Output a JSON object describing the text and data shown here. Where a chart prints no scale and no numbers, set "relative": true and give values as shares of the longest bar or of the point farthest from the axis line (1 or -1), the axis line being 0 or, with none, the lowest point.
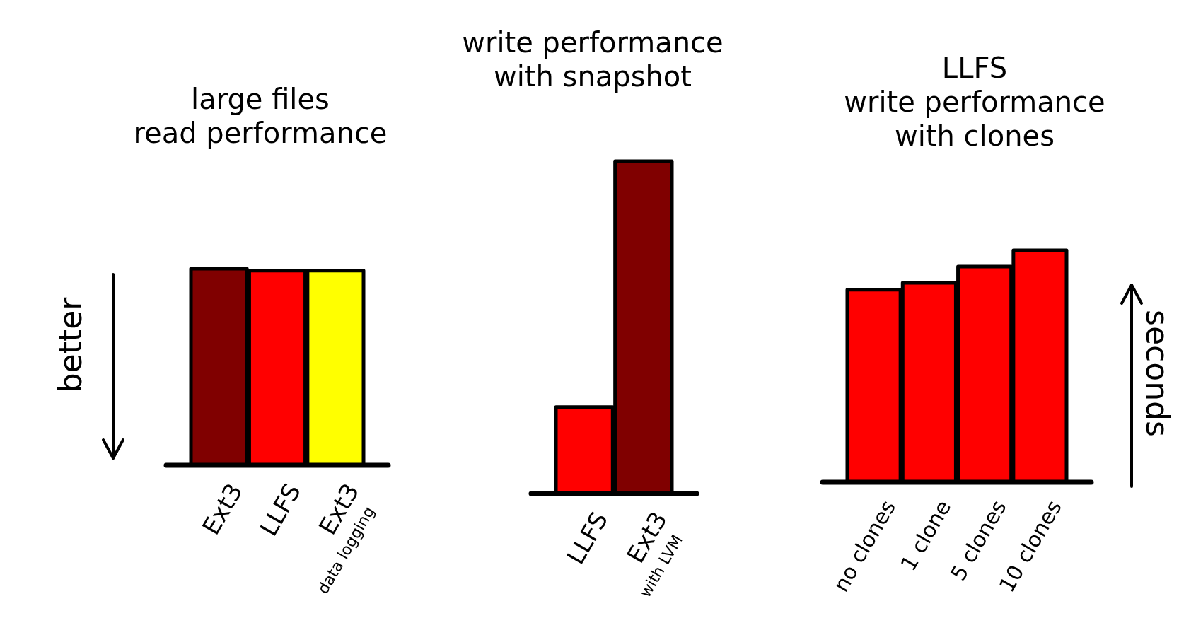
{
  "chart_data": [
    {
      "type": "bar",
      "title": "large files\nread performance",
      "categories": [
        "Ext3",
        "LLFS",
        "Ext3\ndata logging"
      ],
      "values": [
        1,
        0.99,
        0.99
      ],
      "colors": [
        "#800000",
        "#ff0000",
        "#ffff00"
      ],
      "relative": true,
      "annotations": [
        "better"
      ]
    },
    {
      "type": "bar",
      "title": "write performance\nwith snapshot",
      "categories": [
        "LLFS",
        "Ext3\nwith LVM"
      ],
      "values": [
        0.26,
        1
      ],
      "colors": [
        "#ff0000",
        "#800000"
      ],
      "relative": true
    },
    {
      "type": "bar",
      "title": "LLFS\nwrite performance\nwith clones",
      "categories": [
        "no clones",
        "1 clone",
        "5 clones",
        "10 clones"
      ],
      "values": [
        0.83,
        0.86,
        0.93,
        1
      ],
      "colors": [
        "#ff0000",
        "#ff0000",
        "#ff0000",
        "#ff0000"
      ],
      "relative": true,
      "annotations": [
        "seconds"
      ]
    }
  ]
}
